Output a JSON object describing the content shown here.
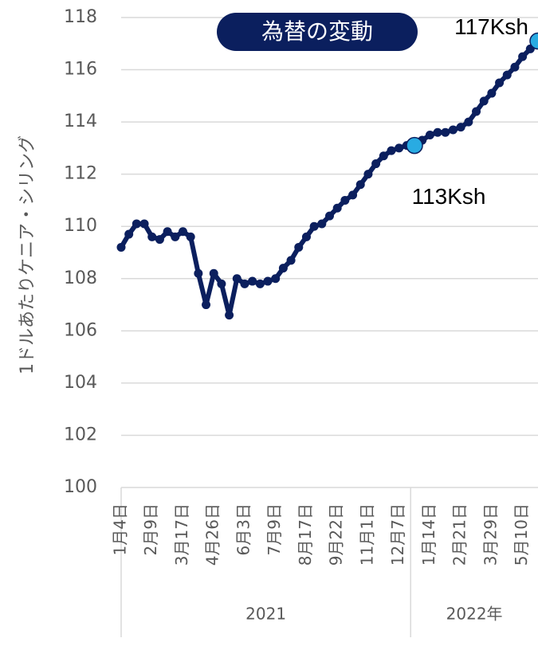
{
  "chart_data": {
    "type": "line",
    "title": "為替の変動",
    "y_label": "1ドルあたりケニア・シリング",
    "categories": [
      "1月4日",
      null,
      null,
      null,
      "2月9日",
      null,
      null,
      null,
      "3月17日",
      null,
      null,
      null,
      "4月26日",
      null,
      null,
      null,
      "6月3日",
      null,
      null,
      null,
      "7月9日",
      null,
      null,
      null,
      "8月17日",
      null,
      null,
      null,
      "9月22日",
      null,
      null,
      null,
      "11月1日",
      null,
      null,
      null,
      "12月7日",
      null,
      null,
      null,
      "1月14日",
      null,
      null,
      null,
      "2月21日",
      null,
      null,
      null,
      "3月29日",
      null,
      null,
      null,
      "5月10日",
      null,
      null
    ],
    "groups": [
      {
        "label": "2021",
        "start": 0
      },
      {
        "label": "2022年",
        "start": 38
      }
    ],
    "values": [
      109.2,
      109.7,
      110.1,
      110.1,
      109.6,
      109.5,
      109.8,
      109.6,
      109.8,
      109.6,
      108.2,
      107.0,
      108.2,
      107.8,
      106.6,
      108.0,
      107.8,
      107.9,
      107.8,
      107.9,
      108.0,
      108.4,
      108.7,
      109.2,
      109.6,
      110.0,
      110.1,
      110.4,
      110.7,
      111.0,
      111.2,
      111.6,
      112.0,
      112.4,
      112.7,
      112.9,
      113.0,
      113.1,
      113.1,
      113.3,
      113.5,
      113.6,
      113.6,
      113.7,
      113.8,
      114.0,
      114.4,
      114.8,
      115.1,
      115.5,
      115.8,
      116.1,
      116.5,
      116.8,
      117.1
    ],
    "color": "#0b1f5e",
    "highlight_color": "#29abe2",
    "annotations": [
      {
        "text": "113Ksh",
        "index": 38
      },
      {
        "text": "117Ksh",
        "index": 54
      }
    ],
    "ylim": [
      100,
      118
    ],
    "yticks": [
      100,
      102,
      104,
      106,
      108,
      110,
      112,
      114,
      116,
      118
    ],
    "grid": true
  }
}
